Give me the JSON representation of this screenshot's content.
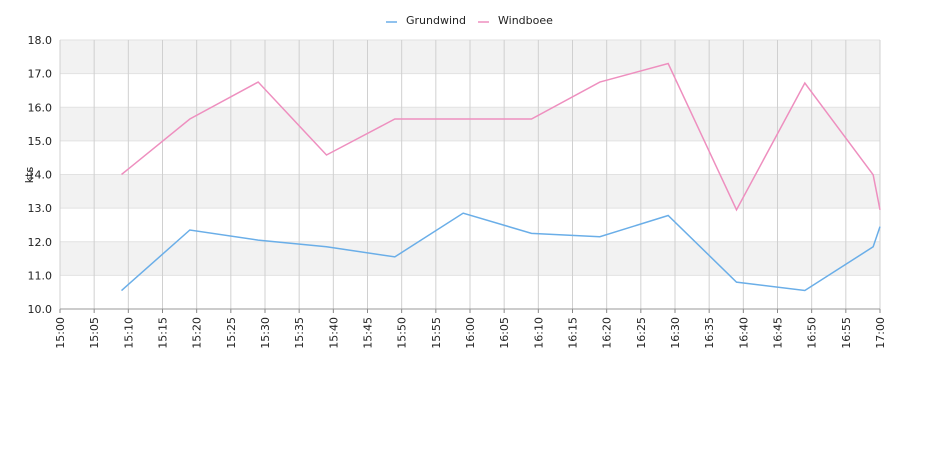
{
  "chart_data": {
    "type": "line",
    "y_label": "kts",
    "x": [
      "15:09",
      "15:19",
      "15:29",
      "15:39",
      "15:49",
      "15:59",
      "16:09",
      "16:19",
      "16:29",
      "16:39",
      "16:49",
      "16:59",
      "17:00"
    ],
    "series": [
      {
        "name": "Grundwind",
        "color": "#6aaee8",
        "values": [
          10.55,
          12.35,
          12.05,
          11.85,
          11.55,
          12.85,
          12.25,
          12.15,
          12.78,
          10.8,
          10.55,
          11.85,
          12.45
        ]
      },
      {
        "name": "Windboee",
        "color": "#ee8fbf",
        "values": [
          14.0,
          15.65,
          16.75,
          14.58,
          15.65,
          15.65,
          15.65,
          16.75,
          17.3,
          12.95,
          16.72,
          13.99,
          12.95
        ]
      }
    ],
    "xlim": [
      "15:00",
      "17:00"
    ],
    "xticks": [
      "15:00",
      "15:05",
      "15:10",
      "15:15",
      "15:20",
      "15:25",
      "15:30",
      "15:35",
      "15:40",
      "15:45",
      "15:50",
      "15:55",
      "16:00",
      "16:05",
      "16:10",
      "16:15",
      "16:20",
      "16:25",
      "16:30",
      "16:35",
      "16:40",
      "16:45",
      "16:50",
      "16:55",
      "17:00"
    ],
    "ylim": [
      10,
      18
    ],
    "yticks": [
      {
        "value": 10,
        "label": "10.0"
      },
      {
        "value": 11,
        "label": "11.0"
      },
      {
        "value": 12,
        "label": "12.0"
      },
      {
        "value": 13,
        "label": "13.0"
      },
      {
        "value": 14,
        "label": "14.0"
      },
      {
        "value": 15,
        "label": "15.0"
      },
      {
        "value": 16,
        "label": "16.0"
      },
      {
        "value": 17,
        "label": "17.0"
      },
      {
        "value": 18,
        "label": "18.0"
      }
    ],
    "grid": true,
    "legend": "top"
  }
}
